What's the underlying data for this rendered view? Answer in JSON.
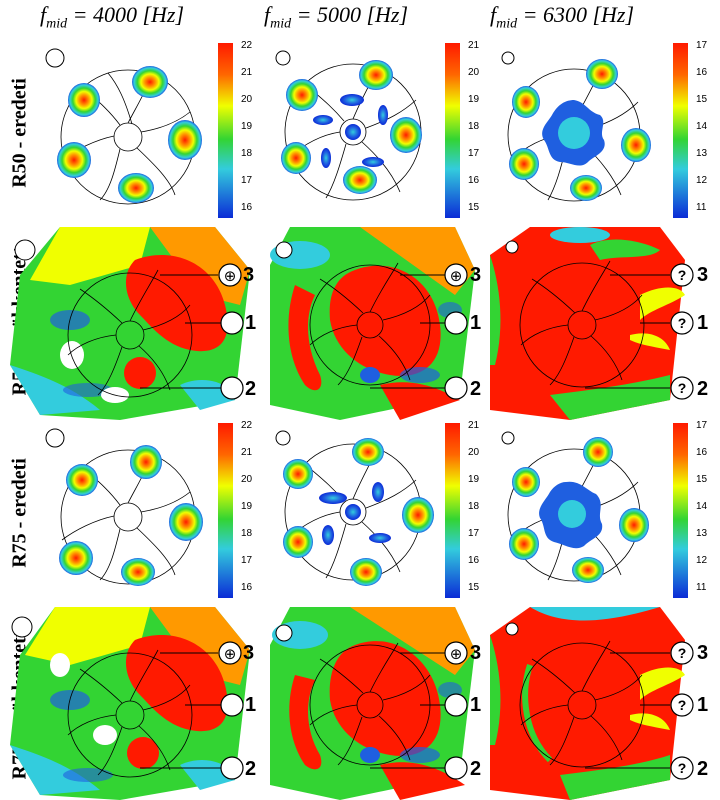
{
  "columns": [
    {
      "f": "f",
      "sub": "mid",
      "rest": " = 4000 [",
      "unit": "Hz",
      "close": "]"
    },
    {
      "f": "f",
      "sub": "mid",
      "rest": " = 5000 [",
      "unit": "Hz",
      "close": "]"
    },
    {
      "f": "f",
      "sub": "mid",
      "rest": " = 6300 [",
      "unit": "Hz",
      "close": "]"
    }
  ],
  "rows": [
    {
      "label": "R50 - eredeti"
    },
    {
      "label": "R50 - csökkentett"
    },
    {
      "label": "R75 - eredeti"
    },
    {
      "label": "R75 - csökkentett"
    }
  ],
  "colorbars": [
    {
      "ticks": [
        "22",
        "21",
        "20",
        "19",
        "18",
        "17",
        "16"
      ]
    },
    {
      "ticks": [
        "21",
        "20",
        "19",
        "18",
        "17",
        "16",
        "15"
      ]
    },
    {
      "ticks": [
        "17",
        "16",
        "15",
        "14",
        "13",
        "12",
        "11"
      ]
    }
  ],
  "callouts": [
    "3",
    "1",
    "2"
  ],
  "callout_symbols": [
    "⊕",
    "⊕",
    "?"
  ],
  "colors": {
    "red": "#ff1a00",
    "orange": "#ff9900",
    "yellow": "#f0ff00",
    "green": "#33d433",
    "cyan": "#33ccdd",
    "blue": "#1f5fe0",
    "darkblue": "#0b2bd6"
  }
}
